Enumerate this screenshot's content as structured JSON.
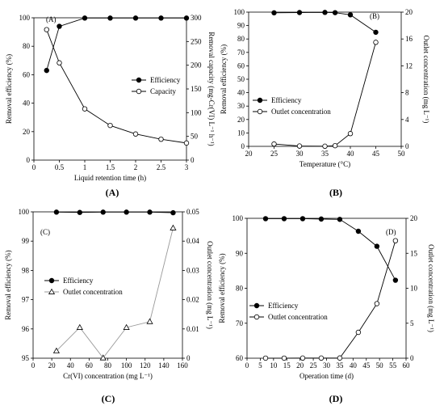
{
  "chart_data": [
    {
      "panel_id": "A",
      "caption": "(A)",
      "tag": "(A)",
      "type": "line",
      "xlabel": "Liquid retention time (h)",
      "ylabel": "Removal efficiency (%)",
      "y2label": "Removal capacity (mg-Cr(VI) L⁻¹ h⁻¹)",
      "xlim": [
        0,
        3
      ],
      "xticks": [
        0,
        0.5,
        1,
        1.5,
        2,
        2.5,
        3
      ],
      "ylim": [
        0,
        100
      ],
      "yticks": [
        0,
        20,
        40,
        60,
        80,
        100
      ],
      "y2lim": [
        0,
        300
      ],
      "y2ticks": [
        0,
        50,
        100,
        150,
        200,
        250,
        300
      ],
      "legend_position": "center-right",
      "series": [
        {
          "name": "Efficiency",
          "axis": "left",
          "marker": "filled-circle",
          "line": "#000000",
          "x": [
            0.25,
            0.5,
            1,
            1.5,
            2,
            2.5,
            3
          ],
          "y": [
            63,
            94,
            99.8,
            99.8,
            99.8,
            99.8,
            99.8
          ]
        },
        {
          "name": "Capacity",
          "axis": "right",
          "marker": "open-circle",
          "line": "#000000",
          "x": [
            0.25,
            0.5,
            1,
            1.5,
            2,
            2.5,
            3
          ],
          "y": [
            275,
            205,
            108,
            73,
            55,
            44,
            36
          ]
        }
      ]
    },
    {
      "panel_id": "B",
      "caption": "(B)",
      "tag": "(B)",
      "type": "line",
      "xlabel": "Temperature (°C)",
      "ylabel": "Removal efficiency (%)",
      "y2label": "Outlet concentration (mg L⁻¹)",
      "xlim": [
        20,
        50
      ],
      "xticks": [
        20,
        25,
        30,
        35,
        40,
        45,
        50
      ],
      "ylim": [
        0,
        100
      ],
      "yticks": [
        0,
        10,
        20,
        30,
        40,
        50,
        60,
        70,
        80,
        90,
        100
      ],
      "y2lim": [
        0,
        20
      ],
      "y2ticks": [
        0,
        4,
        8,
        12,
        16,
        20
      ],
      "legend_position": "bottom-left",
      "series": [
        {
          "name": "Efficiency",
          "axis": "left",
          "marker": "filled-circle",
          "line": "#000000",
          "x": [
            25,
            30,
            35,
            37,
            40,
            45
          ],
          "y": [
            99.5,
            99.7,
            99.8,
            99.6,
            98,
            85
          ]
        },
        {
          "name": "Outlet concentration",
          "axis": "right",
          "marker": "open-circle",
          "line": "#000000",
          "x": [
            25,
            30,
            35,
            37,
            40,
            45
          ],
          "y": [
            0.35,
            0.05,
            0.02,
            0.1,
            1.9,
            15.5
          ]
        }
      ]
    },
    {
      "panel_id": "C",
      "caption": "(C)",
      "tag": "(C)",
      "type": "line",
      "xlabel": "Cr(VI) concentration  (mg L⁻¹)",
      "ylabel": "Removal efficiency (%)",
      "y2label": "Outlet concentration (mg L⁻¹)",
      "xlim": [
        0,
        160
      ],
      "xticks": [
        0,
        20,
        40,
        60,
        80,
        100,
        120,
        140,
        160
      ],
      "ylim": [
        95,
        100
      ],
      "yticks": [
        95,
        96,
        97,
        98,
        99,
        100
      ],
      "y2lim": [
        0,
        0.05
      ],
      "y2ticks": [
        0,
        0.01,
        0.02,
        0.03,
        0.04,
        0.05
      ],
      "legend_position": "center-left",
      "series": [
        {
          "name": "Efficiency",
          "axis": "left",
          "marker": "filled-circle",
          "line": "#000000",
          "x": [
            25,
            50,
            75,
            100,
            125,
            150
          ],
          "y": [
            99.99,
            99.98,
            99.99,
            99.99,
            99.99,
            99.97
          ]
        },
        {
          "name": "Outlet concentration",
          "axis": "right",
          "marker": "open-triangle",
          "line": "#999999",
          "x": [
            25,
            50,
            75,
            100,
            125,
            150
          ],
          "y": [
            0.0025,
            0.0105,
            0.0001,
            0.0105,
            0.0125,
            0.0445
          ]
        }
      ]
    },
    {
      "panel_id": "D",
      "caption": "(D)",
      "tag": "(D)",
      "type": "line",
      "xlabel": "Operation time (d)",
      "ylabel": "Removal efficiency (%)",
      "y2label": "Outlet concentration (mg L⁻¹)",
      "xlim": [
        0,
        60
      ],
      "xticks": [
        0,
        5,
        10,
        15,
        20,
        25,
        30,
        35,
        40,
        45,
        50,
        55,
        60
      ],
      "ylim": [
        60,
        100
      ],
      "yticks": [
        60,
        70,
        80,
        90,
        100
      ],
      "y2lim": [
        0,
        20
      ],
      "y2ticks": [
        0,
        5,
        10,
        15,
        20
      ],
      "legend_position": "bottom-left",
      "series": [
        {
          "name": "Efficiency",
          "axis": "left",
          "marker": "filled-circle",
          "line": "#000000",
          "x": [
            7,
            14,
            21,
            28,
            35,
            42,
            49,
            56
          ],
          "y": [
            99.9,
            99.9,
            99.9,
            99.8,
            99.7,
            96.3,
            92,
            82.3
          ]
        },
        {
          "name": "Outlet concentration",
          "axis": "right",
          "marker": "open-circle",
          "line": "#000000",
          "x": [
            7,
            14,
            21,
            28,
            35,
            42,
            49,
            56
          ],
          "y": [
            0.01,
            0.01,
            0.02,
            0.02,
            0.03,
            3.7,
            7.8,
            16.8
          ]
        }
      ]
    }
  ]
}
